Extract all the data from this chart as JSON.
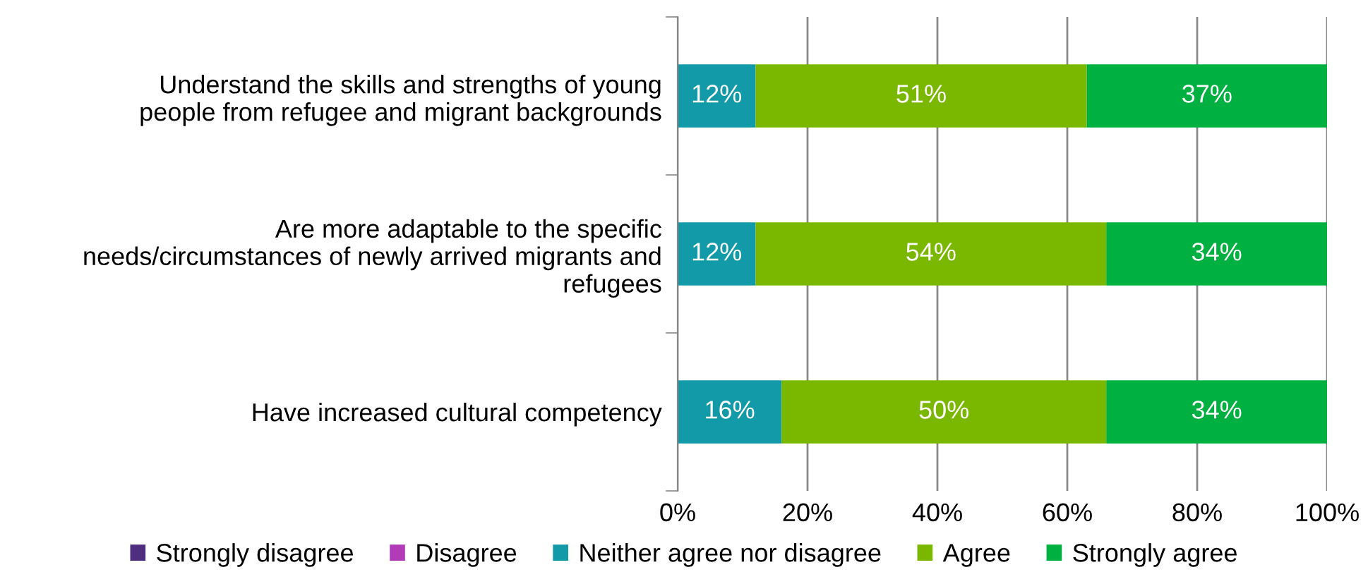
{
  "chart_data": {
    "type": "bar",
    "orientation": "horizontal",
    "stacked": true,
    "categories": [
      "Understand the skills and strengths of young\npeople from refugee and migrant backgrounds",
      "Are more adaptable to the specific\nneeds/circumstances of newly arrived migrants and\nrefugees",
      "Have increased cultural competency"
    ],
    "series": [
      {
        "name": "Strongly disagree",
        "color": "#4f2d7f",
        "values": [
          0,
          0,
          0
        ],
        "value_labels": [
          null,
          null,
          null
        ]
      },
      {
        "name": "Disagree",
        "color": "#b23cb8",
        "values": [
          0,
          0,
          0
        ],
        "value_labels": [
          null,
          null,
          null
        ]
      },
      {
        "name": "Neither agree nor disagree",
        "color": "#139aa8",
        "values": [
          12,
          12,
          16
        ],
        "value_labels": [
          "12%",
          "12%",
          "16%"
        ]
      },
      {
        "name": "Agree",
        "color": "#7ab800",
        "values": [
          51,
          54,
          50
        ],
        "value_labels": [
          "51%",
          "54%",
          "50%"
        ]
      },
      {
        "name": "Strongly agree",
        "color": "#00b040",
        "values": [
          37,
          34,
          34
        ],
        "value_labels": [
          "37%",
          "34%",
          "34%"
        ]
      }
    ],
    "xlim": [
      0,
      100
    ],
    "xticks": [
      {
        "value": 0,
        "label": "0%"
      },
      {
        "value": 20,
        "label": "20%"
      },
      {
        "value": 40,
        "label": "40%"
      },
      {
        "value": 60,
        "label": "60%"
      },
      {
        "value": 80,
        "label": "80%"
      },
      {
        "value": 100,
        "label": "100%"
      }
    ],
    "grid": "x",
    "legend": "bottom"
  }
}
